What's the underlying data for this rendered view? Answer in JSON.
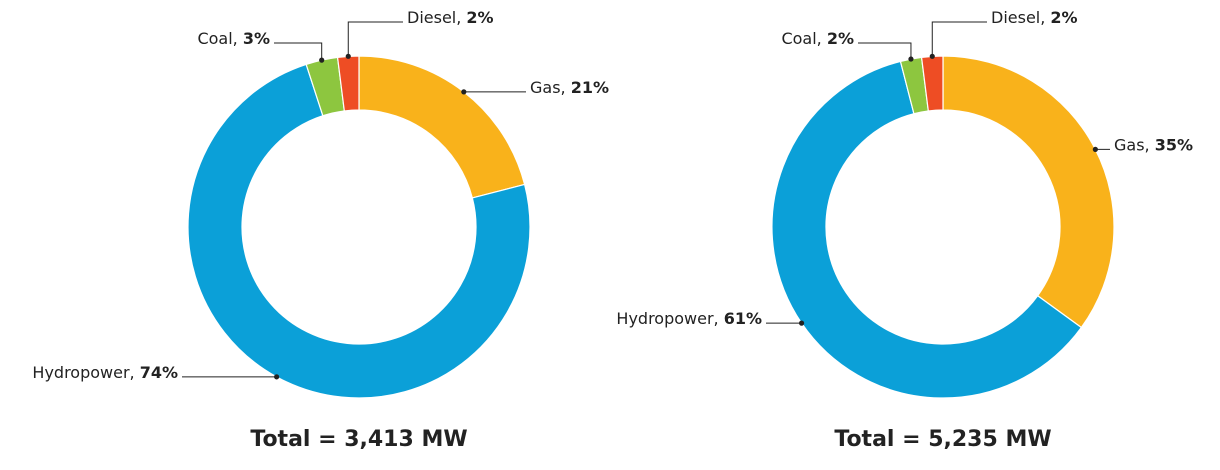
{
  "chart_data": [
    {
      "type": "donut",
      "title": "Total = 3,413 MW",
      "categories": [
        "Gas",
        "Hydropower",
        "Coal",
        "Diesel"
      ],
      "values": [
        21,
        74,
        3,
        2
      ],
      "value_labels": [
        "21%",
        "74%",
        "3%",
        "2%"
      ],
      "colors": [
        "#f9b21b",
        "#0ba0d8",
        "#8dc63f",
        "#ee4d24"
      ]
    },
    {
      "type": "donut",
      "title": "Total = 5,235 MW",
      "categories": [
        "Gas",
        "Hydropower",
        "Coal",
        "Diesel"
      ],
      "values": [
        35,
        61,
        2,
        2
      ],
      "value_labels": [
        "35%",
        "61%",
        "2%",
        "2%"
      ],
      "colors": [
        "#f9b21b",
        "#0ba0d8",
        "#8dc63f",
        "#ee4d24"
      ]
    }
  ]
}
